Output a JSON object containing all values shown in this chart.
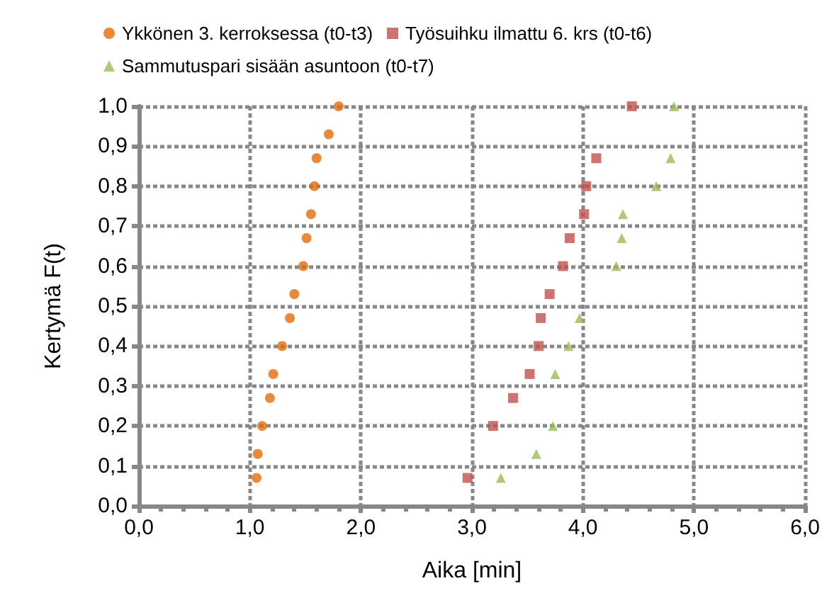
{
  "chart_data": {
    "type": "scatter",
    "xlabel": "Aika [min]",
    "ylabel": "Kertymä F(t)",
    "xlim": [
      0,
      6
    ],
    "xticks": [
      {
        "value": 0,
        "label": "0,0"
      },
      {
        "value": 1,
        "label": "1,0"
      },
      {
        "value": 2,
        "label": "2,0"
      },
      {
        "value": 3,
        "label": "3,0"
      },
      {
        "value": 4,
        "label": "4,0"
      },
      {
        "value": 5,
        "label": "5,0"
      },
      {
        "value": 6,
        "label": "6,0"
      }
    ],
    "ylim": [
      0,
      1
    ],
    "yticks": [
      {
        "value": 0,
        "label": "0,0"
      },
      {
        "value": 0.1,
        "label": "0,1"
      },
      {
        "value": 0.2,
        "label": "0,2"
      },
      {
        "value": 0.3,
        "label": "0,3"
      },
      {
        "value": 0.4,
        "label": "0,4"
      },
      {
        "value": 0.5,
        "label": "0,5"
      },
      {
        "value": 0.6,
        "label": "0,6"
      },
      {
        "value": 0.7,
        "label": "0,7"
      },
      {
        "value": 0.8,
        "label": "0,8"
      },
      {
        "value": 0.9,
        "label": "0,9"
      },
      {
        "value": 1,
        "label": "1,0"
      }
    ],
    "grid": true,
    "legend": "top",
    "series": [
      {
        "name": "Ykkönen 3. kerroksessa (t0-t3)",
        "color": "#e46c0a",
        "marker": "circle",
        "x": [
          1.06,
          1.07,
          1.11,
          1.18,
          1.21,
          1.29,
          1.36,
          1.4,
          1.48,
          1.51,
          1.55,
          1.58,
          1.6,
          1.71,
          1.8
        ],
        "values": [
          0.07,
          0.13,
          0.2,
          0.27,
          0.33,
          0.4,
          0.47,
          0.53,
          0.6,
          0.67,
          0.73,
          0.8,
          0.87,
          0.93,
          1.0
        ]
      },
      {
        "name": "Työsuihku ilmattu 6. krs (t0-t6)",
        "color": "#c0504d",
        "marker": "square",
        "x": [
          2.96,
          3.19,
          3.37,
          3.52,
          3.6,
          3.62,
          3.7,
          3.82,
          3.88,
          4.01,
          4.03,
          4.12,
          4.44
        ],
        "values": [
          0.07,
          0.2,
          0.27,
          0.33,
          0.4,
          0.47,
          0.53,
          0.6,
          0.67,
          0.73,
          0.8,
          0.87,
          1.0
        ]
      },
      {
        "name": "Sammutuspari sisään asuntoon (t0-t7)",
        "color": "#9bbb59",
        "marker": "triangle",
        "x": [
          3.26,
          3.58,
          3.73,
          3.75,
          3.87,
          3.97,
          4.3,
          4.35,
          4.36,
          4.66,
          4.79,
          4.82
        ],
        "values": [
          0.07,
          0.13,
          0.2,
          0.33,
          0.4,
          0.47,
          0.6,
          0.67,
          0.73,
          0.8,
          0.87,
          1.0
        ]
      }
    ]
  }
}
